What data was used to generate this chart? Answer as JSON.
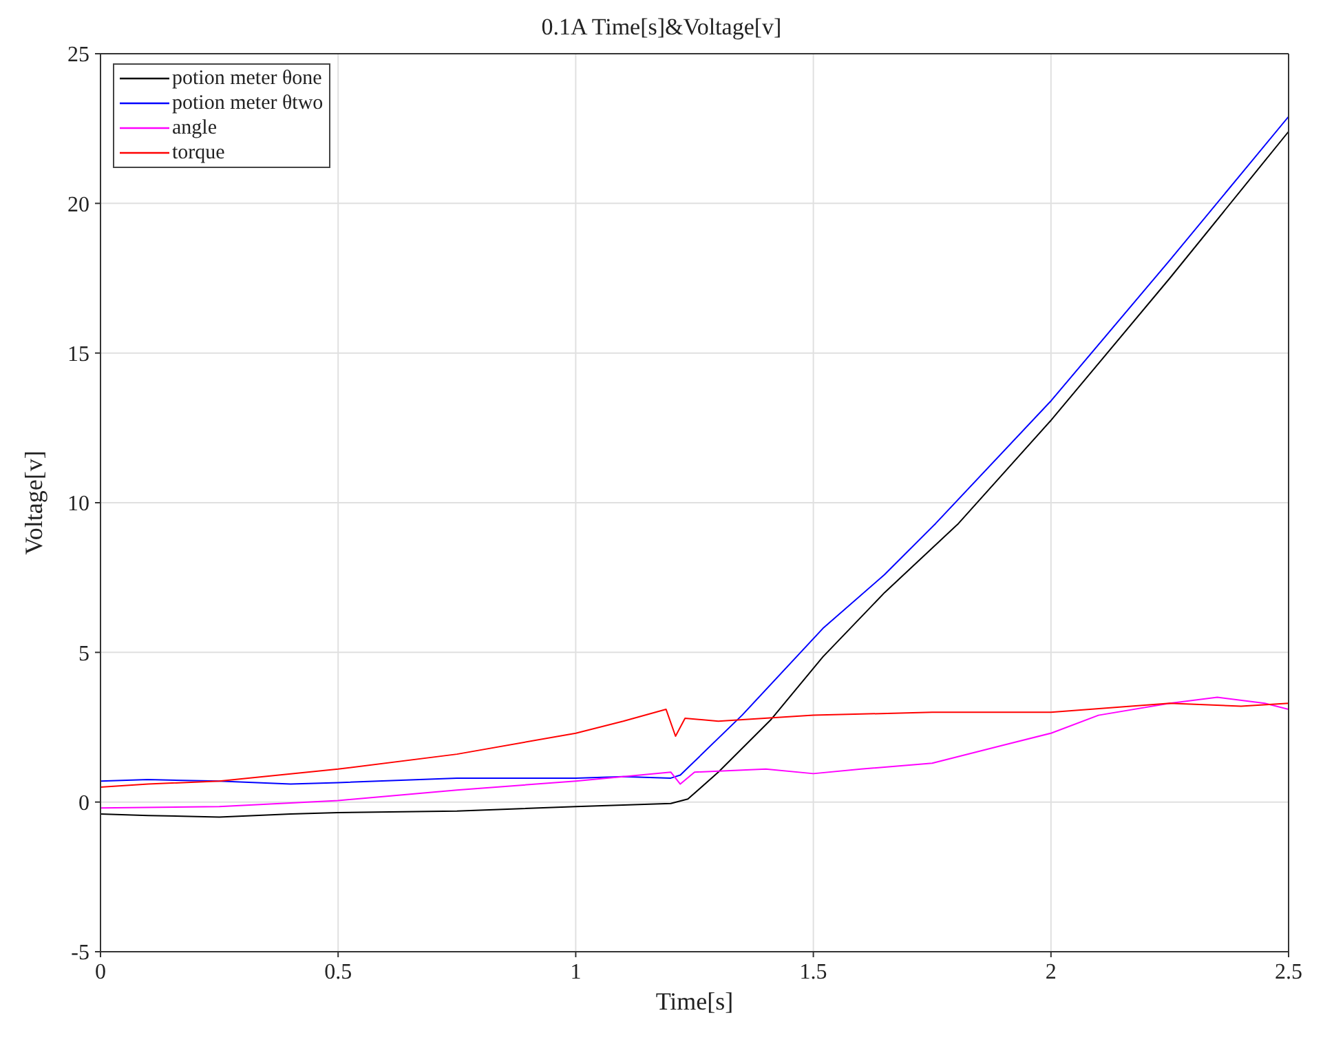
{
  "chart_data": {
    "type": "line",
    "title": "0.1A Time[s]&Voltage[v]",
    "xlabel": "Time[s]",
    "ylabel": "Voltage[v]",
    "xlim": [
      0,
      2.5
    ],
    "xticks": [
      0,
      0.5,
      1,
      1.5,
      2,
      2.5
    ],
    "ylim": [
      -5,
      25
    ],
    "yticks": [
      -5,
      0,
      5,
      10,
      15,
      20,
      25
    ],
    "grid": true,
    "legend": "top left",
    "line_style": "solid",
    "marker": "none",
    "series": [
      {
        "name": "potion meter θone",
        "color": "#000000",
        "x": [
          0,
          0.1,
          0.25,
          0.4,
          0.5,
          0.75,
          1.0,
          1.1,
          1.2,
          1.236,
          1.3,
          1.41,
          1.52,
          1.65,
          1.805,
          2.0,
          2.25,
          2.5
        ],
        "values": [
          -0.4,
          -0.45,
          -0.5,
          -0.4,
          -0.35,
          -0.3,
          -0.15,
          -0.1,
          -0.05,
          0.1,
          1.0,
          2.74,
          4.85,
          7.0,
          9.3,
          12.75,
          17.5,
          22.4
        ]
      },
      {
        "name": "potion meter θtwo",
        "color": "#0000ff",
        "x": [
          0,
          0.1,
          0.25,
          0.4,
          0.5,
          0.75,
          1.0,
          1.1,
          1.2,
          1.22,
          1.35,
          1.52,
          1.65,
          1.757,
          2.0,
          2.25,
          2.5
        ],
        "values": [
          0.7,
          0.75,
          0.7,
          0.6,
          0.65,
          0.8,
          0.8,
          0.85,
          0.8,
          0.9,
          2.9,
          5.8,
          7.6,
          9.3,
          13.4,
          18.1,
          22.9
        ]
      },
      {
        "name": "angle",
        "color": "#ff00ff",
        "x": [
          0,
          0.25,
          0.5,
          0.75,
          1.0,
          1.2,
          1.22,
          1.25,
          1.4,
          1.5,
          1.6,
          1.75,
          1.9,
          2.0,
          2.1,
          2.25,
          2.35,
          2.45,
          2.5
        ],
        "values": [
          -0.2,
          -0.15,
          0.05,
          0.4,
          0.7,
          1.0,
          0.6,
          1.0,
          1.1,
          0.95,
          1.1,
          1.3,
          1.9,
          2.3,
          2.9,
          3.3,
          3.5,
          3.3,
          3.1
        ]
      },
      {
        "name": "torque",
        "color": "#ff0000",
        "x": [
          0,
          0.1,
          0.25,
          0.5,
          0.75,
          1.0,
          1.1,
          1.19,
          1.21,
          1.23,
          1.3,
          1.5,
          1.75,
          2.0,
          2.25,
          2.4,
          2.5
        ],
        "values": [
          0.5,
          0.6,
          0.7,
          1.1,
          1.6,
          2.3,
          2.7,
          3.1,
          2.2,
          2.8,
          2.7,
          2.9,
          3.0,
          3.0,
          3.3,
          3.2,
          3.3
        ]
      }
    ]
  }
}
